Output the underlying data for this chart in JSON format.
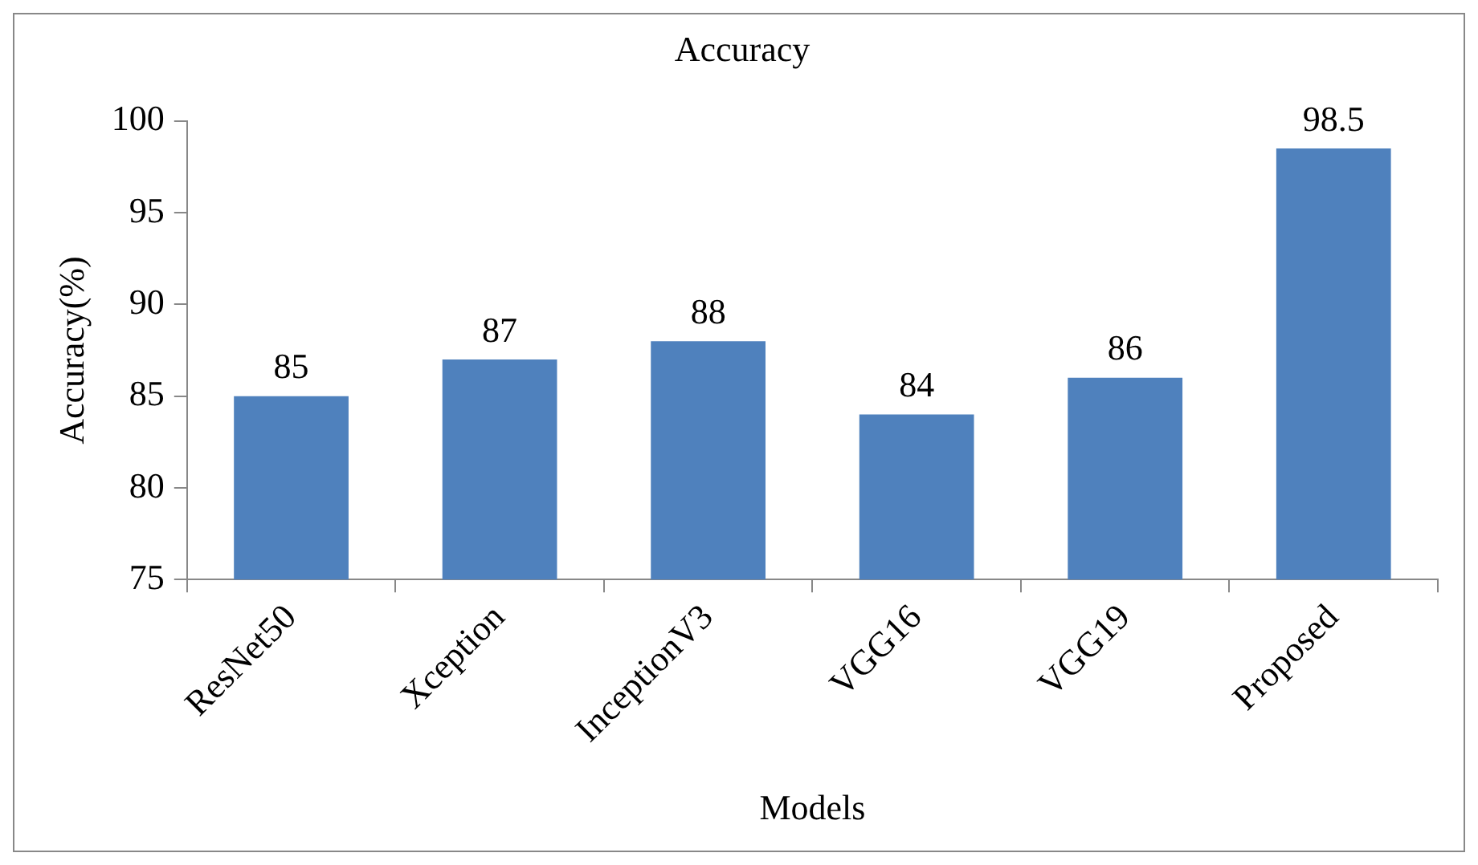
{
  "chart_data": {
    "type": "bar",
    "title": "Accuracy",
    "xlabel": "Models",
    "ylabel": "Accuracy(%)",
    "categories": [
      "ResNet50",
      "Xception",
      "InceptionV3",
      "VGG16",
      "VGG19",
      "Proposed"
    ],
    "values": [
      85,
      87,
      88,
      84,
      86,
      98.5
    ],
    "color": "#4f81bd",
    "ylim": [
      75,
      100
    ],
    "yticks": [
      75,
      80,
      85,
      90,
      95,
      100
    ],
    "grid": false,
    "legend": false,
    "data_labels": true
  }
}
